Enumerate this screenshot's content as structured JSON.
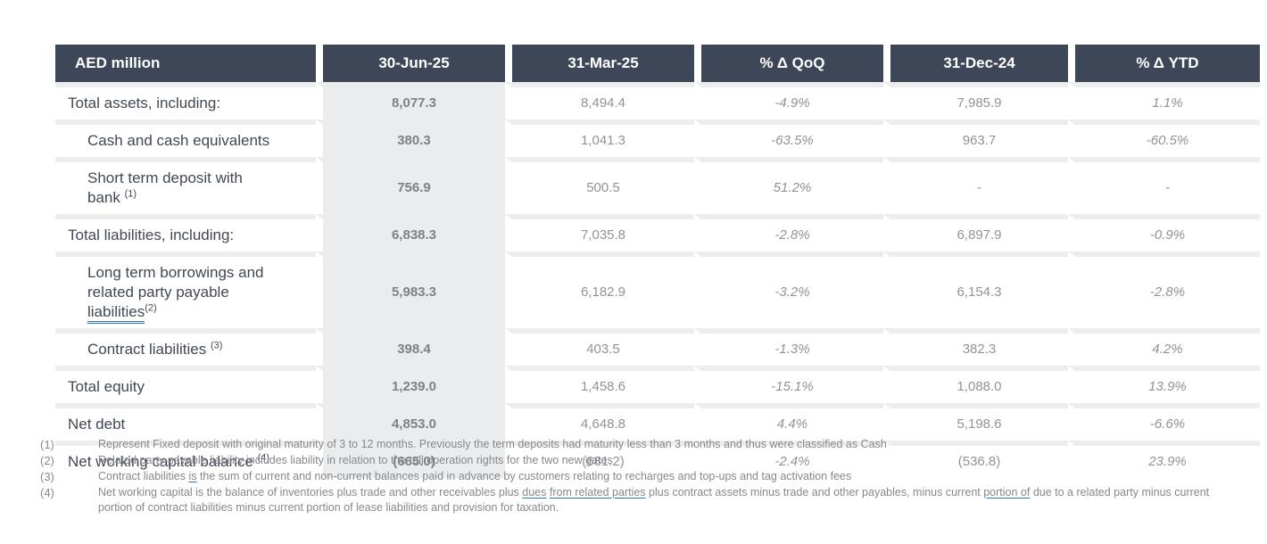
{
  "colors": {
    "header_bg": "#3d4757",
    "header_text": "#ffffff",
    "highlight_column_bg": "#ebeced",
    "row_separator": "#ecedee",
    "label_text": "#414854",
    "number_text": "#909396",
    "highlight_number_text": "#7e8185",
    "footnote_text": "#85888c",
    "underline_accent": "#2e74b5"
  },
  "table": {
    "columns": [
      {
        "label": "AED million"
      },
      {
        "label": "30-Jun-25"
      },
      {
        "label": "31-Mar-25"
      },
      {
        "label": "% Δ QoQ"
      },
      {
        "label": "31-Dec-24"
      },
      {
        "label": "% Δ YTD"
      }
    ],
    "rows": [
      {
        "id": "total-assets",
        "indent": false,
        "label_lines": [
          [
            {
              "text": "Total assets, including:"
            }
          ]
        ],
        "values": [
          "8,077.3",
          "8,494.4",
          "-4.9%",
          "7,985.9",
          "1.1%"
        ]
      },
      {
        "id": "cash-and-cash-equivalents",
        "indent": true,
        "label_lines": [
          [
            {
              "text": "Cash and cash equivalents"
            }
          ]
        ],
        "values": [
          "380.3",
          "1,041.3",
          "-63.5%",
          "963.7",
          "-60.5%"
        ]
      },
      {
        "id": "short-term-deposit",
        "indent": true,
        "label_lines": [
          [
            {
              "text": "Short term deposit with"
            }
          ],
          [
            {
              "text": "bank "
            },
            {
              "sup": "(1)"
            }
          ]
        ],
        "values": [
          "756.9",
          "500.5",
          "51.2%",
          "-",
          "-"
        ]
      },
      {
        "id": "total-liabilities",
        "indent": false,
        "label_lines": [
          [
            {
              "text": "Total liabilities, including:"
            }
          ]
        ],
        "values": [
          "6,838.3",
          "7,035.8",
          "-2.8%",
          "6,897.9",
          "-0.9%"
        ]
      },
      {
        "id": "long-term-borrowings",
        "indent": true,
        "label_lines": [
          [
            {
              "text": "Long term borrowings and"
            }
          ],
          [
            {
              "text": "related party payable"
            }
          ],
          [
            {
              "text": "liabilities",
              "underline": true
            },
            {
              "sup": "(2)"
            }
          ]
        ],
        "values": [
          "5,983.3",
          "6,182.9",
          "-3.2%",
          "6,154.3",
          "-2.8%"
        ]
      },
      {
        "id": "contract-liabilities",
        "indent": true,
        "label_lines": [
          [
            {
              "text": "Contract liabilities "
            },
            {
              "sup": "(3)"
            }
          ]
        ],
        "values": [
          "398.4",
          "403.5",
          "-1.3%",
          "382.3",
          "4.2%"
        ]
      },
      {
        "id": "total-equity",
        "indent": false,
        "label_lines": [
          [
            {
              "text": "Total equity"
            }
          ]
        ],
        "values": [
          "1,239.0",
          "1,458.6",
          "-15.1%",
          "1,088.0",
          "13.9%"
        ]
      },
      {
        "id": "net-debt",
        "indent": false,
        "label_lines": [
          [
            {
              "text": "Net debt"
            }
          ]
        ],
        "values": [
          "4,853.0",
          "4,648.8",
          "4.4%",
          "5,198.6",
          "-6.6%"
        ]
      },
      {
        "id": "net-working-capital",
        "indent": false,
        "label_lines": [
          [
            {
              "text": "Net working capital balance "
            },
            {
              "sup": "(4)"
            }
          ]
        ],
        "values": [
          "(665.0)",
          "(681.2)",
          "-2.4%",
          "(536.8)",
          "23.9%"
        ]
      }
    ]
  },
  "footnotes": [
    {
      "marker": "(1)",
      "parts": [
        {
          "text": "Represent Fixed deposit with original maturity of 3 to 12 months. Previously the term deposits had maturity less than 3 months and thus were classified as Cash"
        }
      ]
    },
    {
      "marker": "(2)",
      "parts": [
        {
          "text": "Related party payable liability includes liability in relation to the toll operation rights for the two new gates"
        }
      ]
    },
    {
      "marker": "(3)",
      "parts": [
        {
          "text": "Contract liabilities "
        },
        {
          "text": "is",
          "underline": true
        },
        {
          "text": " the sum of current and non-current balances paid in advance by customers relating to recharges and top-ups and tag activation fees"
        }
      ]
    },
    {
      "marker": "(4)",
      "parts": [
        {
          "text": "Net working capital is the balance of inventories plus trade and other receivables plus "
        },
        {
          "text": "dues",
          "underline": true
        },
        {
          "text": " "
        },
        {
          "text": "from related parties",
          "underline": true
        },
        {
          "text": " plus contract assets minus trade and other payables, minus current "
        },
        {
          "text": "portion of",
          "underline": true
        },
        {
          "text": " due to a related party minus current portion of contract liabilities minus current portion of lease liabilities and provision for taxation."
        }
      ]
    }
  ]
}
